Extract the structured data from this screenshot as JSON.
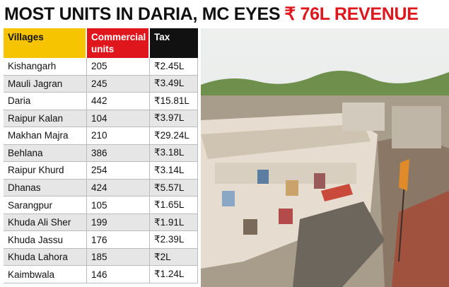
{
  "title": {
    "lead": "MOST UNITS IN DARIA, MC EYES",
    "highlight": "₹ 76L REVENUE"
  },
  "table": {
    "header": [
      "Villages",
      "Commercial units",
      "Tax"
    ],
    "rows": [
      [
        "Kishangarh",
        205,
        "₹2.45L"
      ],
      [
        "Mauli Jagran",
        245,
        "₹3.49L"
      ],
      [
        "Daria",
        442,
        "₹15.81L"
      ],
      [
        "Raipur Kalan",
        104,
        "₹3.97L"
      ],
      [
        "Makhan Majra",
        210,
        "₹29.24L"
      ],
      [
        "Behlana",
        386,
        "₹3.18L"
      ],
      [
        "Raipur Khurd",
        254,
        "₹3.14L"
      ],
      [
        "Dhanas",
        424,
        "₹5.57L"
      ],
      [
        "Sarangpur",
        105,
        "₹1.65L"
      ],
      [
        "Khuda Ali Sher",
        199,
        "₹1.91L"
      ],
      [
        "Khuda Jassu",
        176,
        "₹2.39L"
      ],
      [
        "Khuda Lahora",
        185,
        "₹2L"
      ],
      [
        "Kaimbwala",
        146,
        "₹1.24L"
      ]
    ]
  }
}
